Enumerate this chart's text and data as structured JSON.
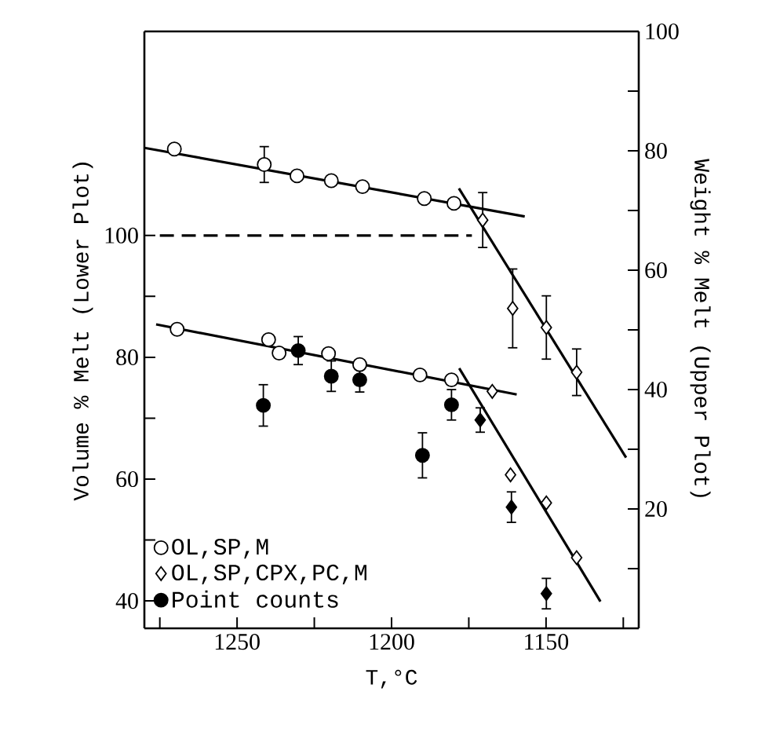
{
  "chart_data": {
    "type": "scatter",
    "xlabel": "T,°C",
    "ylabel": "Volume % Melt (Lower Plot)",
    "y2label": "Weight % Melt (Upper Plot)",
    "xlim": [
      1280,
      1120
    ],
    "xticks": [
      {
        "value": 1275,
        "label": null
      },
      1250,
      {
        "value": 1225,
        "label": null
      },
      1200,
      {
        "value": 1175,
        "label": null
      },
      1150,
      {
        "value": 1125,
        "label": null
      }
    ],
    "ylim": [
      35.5,
      133.5
    ],
    "yticks": [
      40,
      {
        "value": 50,
        "label": null
      },
      60,
      {
        "value": 70,
        "label": null
      },
      80,
      {
        "value": 90,
        "label": null
      },
      100
    ],
    "y2lim": [
      0,
      100
    ],
    "y2ticks": [
      {
        "value": 10,
        "label": null
      },
      20,
      {
        "value": 30,
        "label": null
      },
      40,
      {
        "value": 50,
        "label": null
      },
      60,
      {
        "value": 70,
        "label": null
      },
      80,
      {
        "value": 90,
        "label": null
      },
      100
    ],
    "legend": "bottom left",
    "grid": false,
    "series": [
      {
        "name": "OL,SP,M",
        "marker": "circle",
        "color": "#ffffff",
        "x": [
          1269.4,
          1239.8,
          1236.4,
          1220.4,
          1210.3,
          1190.8,
          1180.6
        ],
        "values": [
          84.6,
          82.9,
          80.7,
          80.6,
          78.8,
          77.1,
          76.3
        ]
      },
      {
        "name": "OL,SP,CPX,PC,M",
        "marker": "diamond",
        "color": "#ffffff",
        "x": [
          1167.4,
          1161.5,
          1149.9,
          1140.1
        ],
        "values": [
          74.4,
          60.7,
          56.1,
          47.1
        ]
      },
      {
        "name": "Point counts",
        "marker": "circle",
        "color": "#000000",
        "x": [
          1241.5,
          1230.2,
          1219.5,
          1210.3,
          1190.0,
          1180.6
        ],
        "values": [
          72.1,
          81.1,
          76.9,
          76.3,
          63.9,
          72.2
        ],
        "errors": [
          3.4,
          2.3,
          2.5,
          2,
          3.7,
          2.5
        ]
      },
      {
        "marker": "diamond",
        "color": "#000000",
        "x": [
          1171.3,
          1161.2,
          1149.9
        ],
        "values": [
          69.7,
          55.4,
          41.2
        ],
        "errors": [
          2,
          2.5,
          2.5
        ]
      },
      {
        "type": "line",
        "marker": "none",
        "line_style": "solid",
        "color": "#000000",
        "x": [
          1276.2,
          1159.5
        ],
        "values": [
          85.4,
          73.9
        ]
      },
      {
        "type": "line",
        "marker": "none",
        "line_style": "solid",
        "color": "#000000",
        "x": [
          1178.1,
          1132.4
        ],
        "values": [
          78.2,
          39.9
        ]
      },
      {
        "type": "line",
        "marker": "none",
        "line_style": "dashed",
        "color": "#000000",
        "x": [
          1275,
          1174
        ],
        "values": [
          100,
          100
        ]
      },
      {
        "axis": "y2",
        "marker": "circle",
        "color": "#ffffff",
        "x": [
          1270.3,
          1241.2,
          1230.6,
          1219.5,
          1209.4,
          1189.4,
          1179.8
        ],
        "values": [
          80.3,
          77.7,
          75.8,
          75.0,
          74.0,
          72.0,
          71.2
        ],
        "errors": [
          null,
          3,
          null,
          null,
          null,
          null,
          null
        ]
      },
      {
        "axis": "y2",
        "marker": "diamond",
        "color": "#ffffff",
        "x": [
          1170.5,
          1160.8,
          1149.9,
          1140.1
        ],
        "values": [
          68.4,
          53.6,
          50.4,
          42.9
        ],
        "errors": [
          4.6,
          6.6,
          5.3,
          3.9
        ]
      },
      {
        "type": "line",
        "axis": "y2",
        "marker": "none",
        "line_style": "solid",
        "color": "#000000",
        "x": [
          1280,
          1156.9
        ],
        "values": [
          80.5,
          69.0
        ]
      },
      {
        "type": "line",
        "axis": "y2",
        "marker": "none",
        "line_style": "solid",
        "color": "#000000",
        "x": [
          1178.2,
          1124.1
        ],
        "values": [
          73.7,
          28.6
        ]
      }
    ]
  }
}
